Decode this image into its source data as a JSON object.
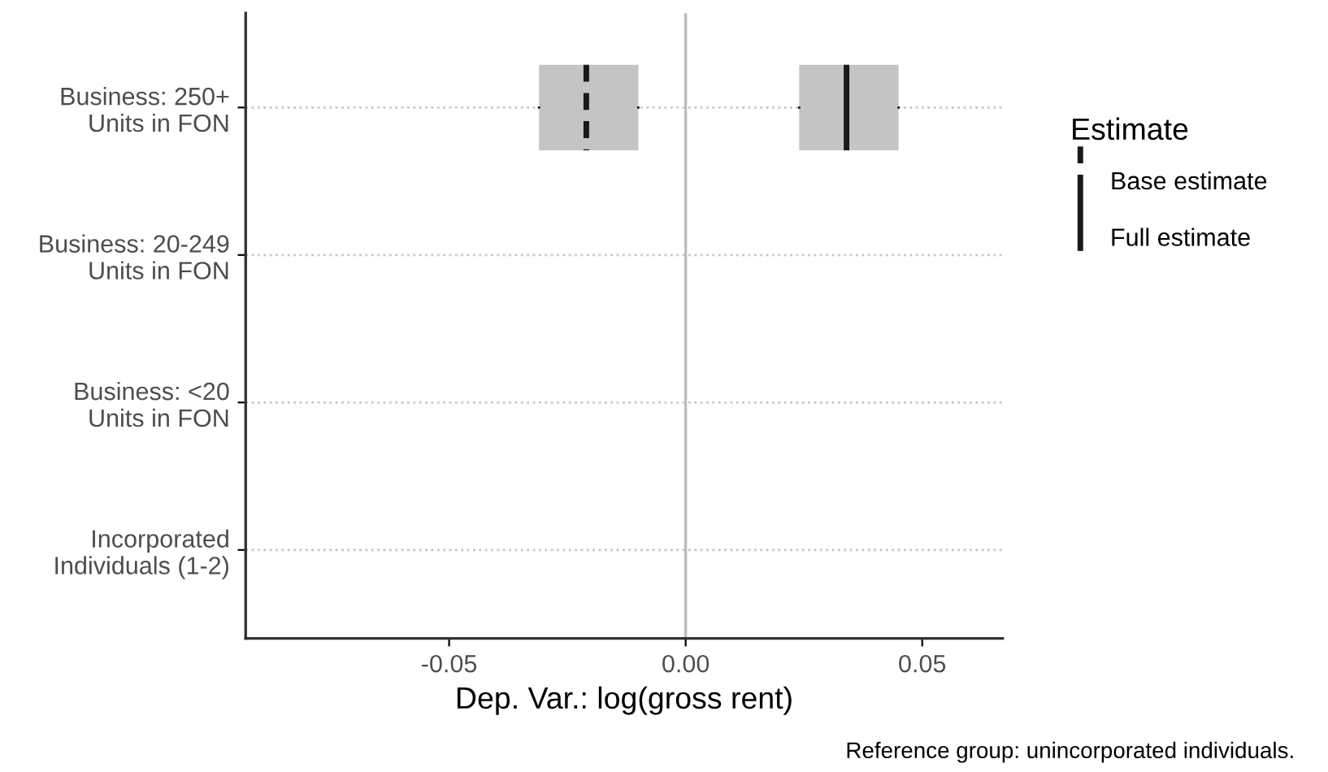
{
  "chart_data": {
    "type": "box",
    "orientation": "horizontal",
    "categories": [
      "Business: 250+\nUnits in FON",
      "Business: 20-249\nUnits in FON",
      "Business: <20\nUnits in FON",
      "Incorporated\nIndividuals (1-2)"
    ],
    "series": [
      {
        "name": "Base estimate",
        "color": "#c4c4c4",
        "line_style": "dashed",
        "boxes": [
          {
            "low": -0.031,
            "q1": -0.031,
            "median": -0.021,
            "q3": -0.01,
            "high": -0.01
          },
          null,
          null,
          null
        ]
      },
      {
        "name": "Full estimate",
        "color": "#c4c4c4",
        "line_style": "solid",
        "boxes": [
          {
            "low": 0.024,
            "q1": 0.024,
            "median": 0.034,
            "q3": 0.045,
            "high": 0.045
          },
          null,
          null,
          null
        ]
      }
    ],
    "xlim": [
      -0.093,
      0.067
    ],
    "xticks": [
      {
        "value": -0.05,
        "label": "-0.05"
      },
      {
        "value": 0.0,
        "label": "0.00"
      },
      {
        "value": 0.05,
        "label": "0.05"
      }
    ],
    "xlabel": "Dep. Var.: log(gross rent)",
    "legend_title": "Estimate",
    "legend": "right",
    "grid": "y",
    "ref_lines": [
      {
        "axis": "x",
        "value": 0,
        "color": "#bdbdbd"
      }
    ],
    "annotations": [
      "Reference group: unincorporated individuals."
    ]
  }
}
